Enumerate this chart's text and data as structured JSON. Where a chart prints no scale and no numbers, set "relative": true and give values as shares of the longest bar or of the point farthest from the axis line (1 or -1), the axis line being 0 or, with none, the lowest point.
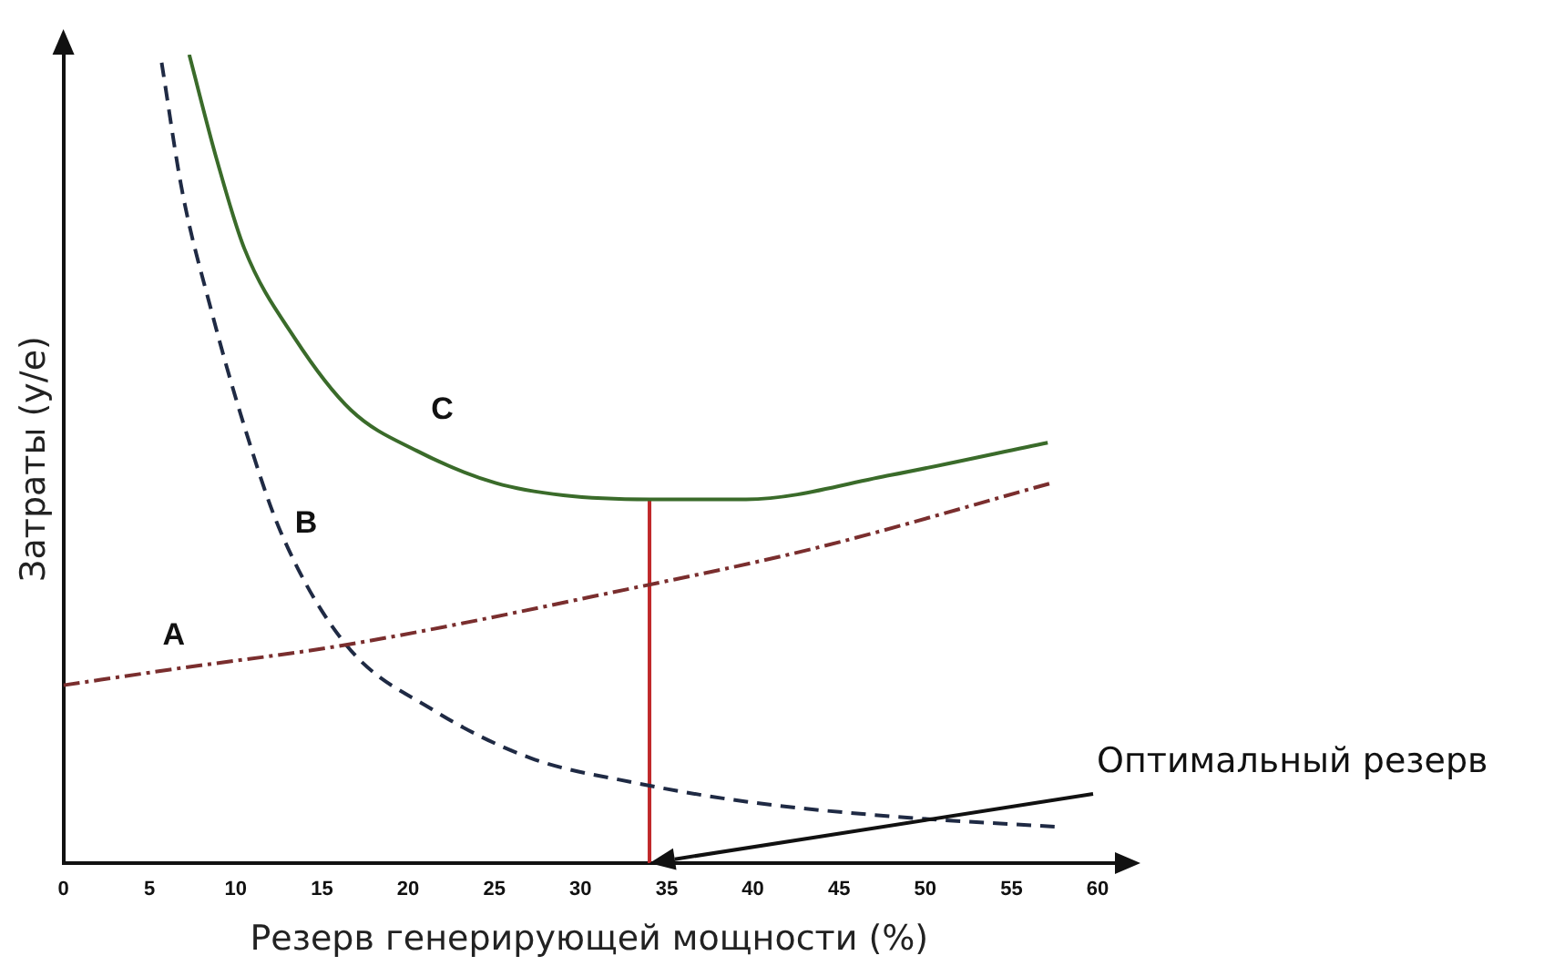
{
  "chart_data": {
    "type": "line",
    "xlabel": "Резерв генерирующей мощности (%)",
    "ylabel": "Затраты (у/е)",
    "relative": true,
    "grid": false,
    "legend": false,
    "marker": "none",
    "xlim": [
      0,
      61
    ],
    "xticks": [
      0,
      5,
      10,
      15,
      20,
      25,
      30,
      35,
      40,
      45,
      50,
      55,
      60
    ],
    "series": [
      {
        "name": "A",
        "color": "#7a2e2e",
        "line_style": "dashdot",
        "x": [
          0,
          6.4,
          16.4,
          33,
          43.7,
          57.3
        ],
        "values": [
          0.22,
          0.24,
          0.27,
          0.34,
          0.39,
          0.47
        ]
      },
      {
        "name": "B",
        "color": "#1f2a44",
        "line_style": "dashed",
        "x": [
          5.7,
          6.9,
          8.5,
          10.5,
          12.6,
          16.4,
          21.4,
          27.1,
          33,
          39.6,
          47.9,
          57.5
        ],
        "values": [
          0.99,
          0.83,
          0.69,
          0.54,
          0.41,
          0.27,
          0.19,
          0.13,
          0.1,
          0.076,
          0.058,
          0.045
        ]
      },
      {
        "name": "C",
        "color": "#3a6b2a",
        "line_style": "solid",
        "x": [
          7.3,
          8.9,
          10.5,
          13.4,
          16.7,
          20.5,
          25.1,
          29,
          34,
          39.6,
          48,
          57.1
        ],
        "values": [
          1,
          0.87,
          0.76,
          0.65,
          0.56,
          0.51,
          0.47,
          0.455,
          0.45,
          0.45,
          0.48,
          0.52
        ]
      },
      {
        "color": "#c0282a",
        "line_style": "solid",
        "x": [
          34,
          34
        ],
        "values": [
          0,
          0.45
        ]
      }
    ],
    "annotations": [
      "Оптимальный резерв"
    ]
  }
}
